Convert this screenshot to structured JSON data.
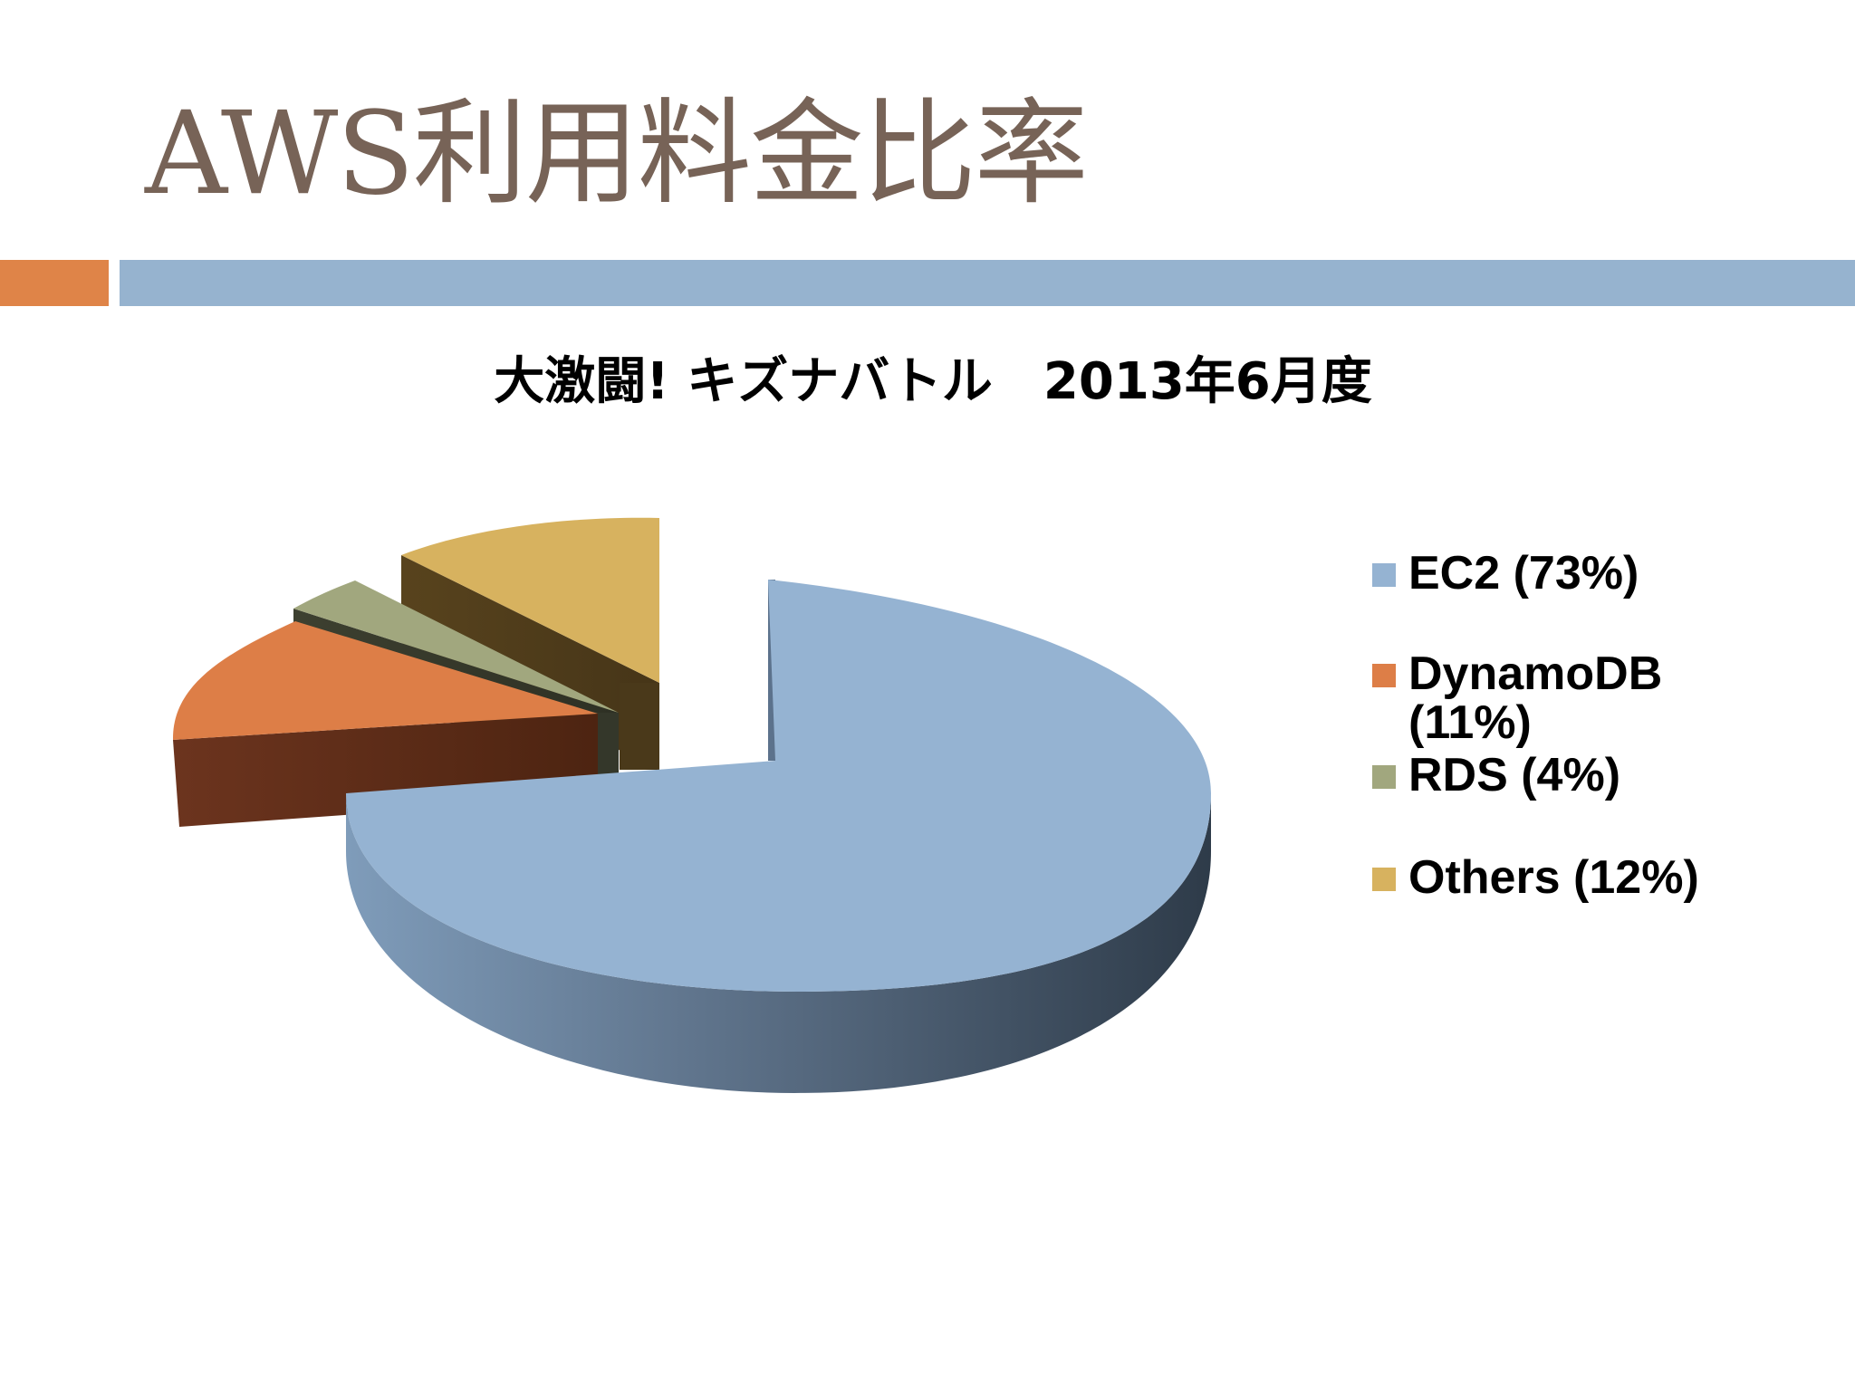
{
  "slide": {
    "title": "AWS利用料金比率"
  },
  "colors": {
    "title": "#776357",
    "accent_orange": "#df8448",
    "accent_blue": "#96b3cf"
  },
  "chart_data": {
    "type": "pie",
    "style": "3d-exploded",
    "title": "大激闘! キズナバトル　2013年6月度",
    "legend_position": "right",
    "slices": [
      {
        "label": "EC2 (73%)",
        "name": "EC2",
        "value": 73,
        "color": "#95b3d2"
      },
      {
        "label": "DynamoDB (11%)",
        "name": "DynamoDB",
        "value": 11,
        "color": "#dd7e47"
      },
      {
        "label": "RDS (4%)",
        "name": "RDS",
        "value": 4,
        "color": "#a1a77e"
      },
      {
        "label": "Others (12%)",
        "name": "Others",
        "value": 12,
        "color": "#d7b25f"
      }
    ],
    "legend": {
      "ec2": "EC2 (73%)",
      "dynamodb_1": "DynamoDB",
      "dynamodb_2": "(11%)",
      "rds": "RDS (4%)",
      "others": "Others (12%)"
    }
  }
}
